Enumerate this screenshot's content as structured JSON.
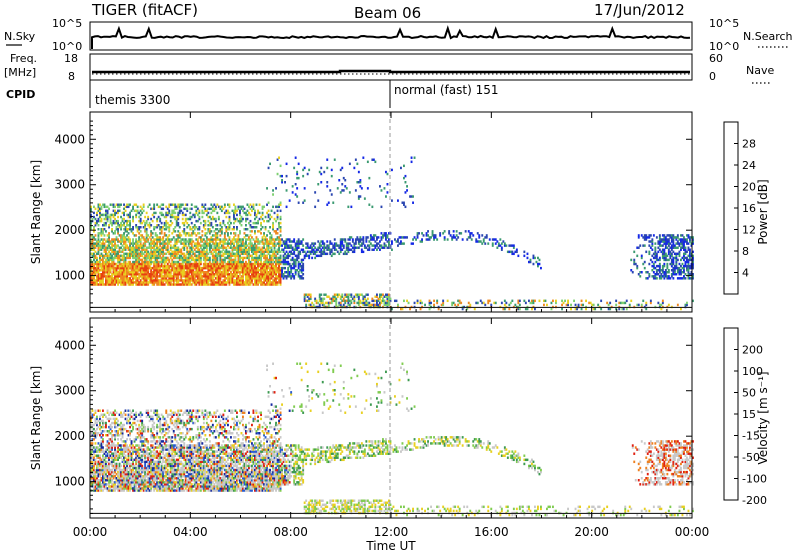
{
  "header": {
    "station": "TIGER (fitACF)",
    "beam": "Beam 06",
    "date": "17/Jun/2012"
  },
  "strips": {
    "nsky_label": "N.Sky",
    "nsky_ticks": [
      "10^5",
      "10^0"
    ],
    "nsearch_label": "N.Search",
    "nsearch_ticks": [
      "10^5",
      "10^0"
    ],
    "freq_label": "Freq.",
    "freq_unit": "[MHz]",
    "freq_ticks": [
      "18",
      "8"
    ],
    "nave_label": "Nave",
    "nave_ticks": [
      "60",
      "0"
    ],
    "cpid_label": "CPID",
    "cpid_segments": [
      "themis 3300",
      "normal (fast) 151"
    ]
  },
  "chart_data": [
    {
      "type": "heatmap",
      "ylabel": "Slant Range [km]",
      "yticks": [
        "1000",
        "2000",
        "3000",
        "4000"
      ],
      "ylim": [
        200,
        4600
      ],
      "colorbar_label": "Power [dB]",
      "colorbar_ticks": [
        "4",
        "8",
        "12",
        "16",
        "20",
        "24",
        "28"
      ],
      "colors": [
        "#1428e6",
        "#2a46b0",
        "#3a9a70",
        "#7ed070",
        "#e8d020",
        "#ee8820",
        "#e84010",
        "#e01010"
      ]
    },
    {
      "type": "heatmap",
      "ylabel": "Slant Range [km]",
      "yticks": [
        "1000",
        "2000",
        "3000",
        "4000"
      ],
      "ylim": [
        200,
        4600
      ],
      "colorbar_label": "Velocity [m s⁻¹]",
      "colorbar_ticks": [
        "200",
        "100",
        "50",
        "15",
        "-15",
        "-50",
        "-100",
        "-200"
      ],
      "colors": [
        "#1428a0",
        "#2a5cd0",
        "#3c9a50",
        "#80cc50",
        "#c8c8c8",
        "#e8d020",
        "#ee8020",
        "#e02010"
      ]
    }
  ],
  "xaxis": {
    "label": "Time UT",
    "ticks": [
      "00:00",
      "04:00",
      "08:00",
      "12:00",
      "16:00",
      "20:00",
      "00:00"
    ]
  }
}
